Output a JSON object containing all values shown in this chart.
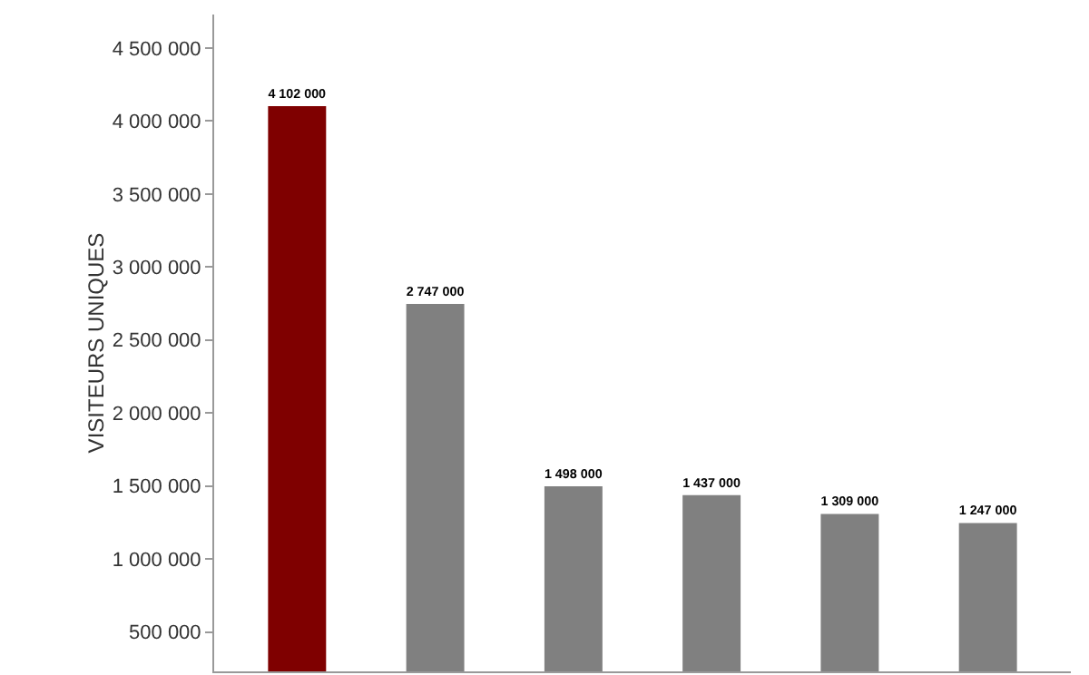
{
  "chart_data": {
    "type": "bar",
    "ylabel": "VISITEURS UNIQUES",
    "categories": [
      null,
      null,
      null,
      null,
      null,
      null
    ],
    "values": [
      4102000,
      2747000,
      1498000,
      1437000,
      1309000,
      1247000
    ],
    "colors": [
      "#7f0000",
      "#808080",
      "#808080",
      "#808080",
      "#808080",
      "#808080"
    ],
    "value_labels": [
      "4 102 000",
      "2 747 000",
      "1 498 000",
      "1 437 000",
      "1 309 000",
      "1 247 000"
    ],
    "ylim": [
      230000,
      4730000
    ],
    "yticks": [
      {
        "value": 500000,
        "label": "500 000"
      },
      {
        "value": 1000000,
        "label": "1 000 000"
      },
      {
        "value": 1500000,
        "label": "1 500 000"
      },
      {
        "value": 2000000,
        "label": "2 000 000"
      },
      {
        "value": 2500000,
        "label": "2 500 000"
      },
      {
        "value": 3000000,
        "label": "3 000 000"
      },
      {
        "value": 3500000,
        "label": "3 500 000"
      },
      {
        "value": 4000000,
        "label": "4 000 000"
      },
      {
        "value": 4500000,
        "label": "4 500 000"
      }
    ],
    "tick_labels": "y",
    "grid": false
  }
}
